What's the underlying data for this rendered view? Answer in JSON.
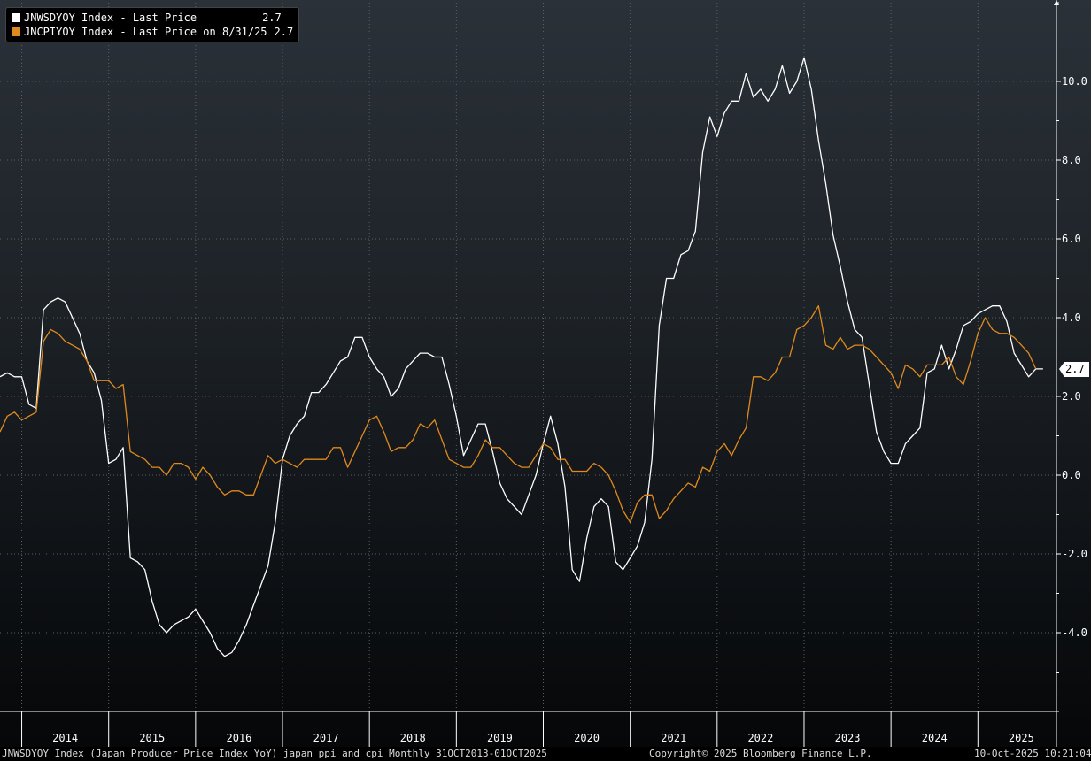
{
  "legend": {
    "items": [
      {
        "label": "JNWSDYOY Index - Last Price",
        "value": "2.7",
        "color": "#ffffff"
      },
      {
        "label": "JNCPIYOY Index - Last Price on 8/31/25",
        "value": "2.7",
        "color": "#e08a1e"
      }
    ]
  },
  "last_value_badge": "2.7",
  "footer": {
    "left": "JNWSDYOY Index (Japan Producer Price Index YoY) japan ppi and cpi Monthly 31OCT2013-01OCT2025",
    "center": "Copyright© 2025 Bloomberg Finance L.P.",
    "right": "10-Oct-2025 10:21:04"
  },
  "chart_data": {
    "type": "line",
    "x_start": "2013-10",
    "x_end": "2025-10",
    "ylim": [
      -6,
      12
    ],
    "yticks": [
      "10.0",
      "8.0",
      "6.0",
      "4.0",
      "2.0",
      "0.0",
      "-2.0",
      "-4.0"
    ],
    "xlabels": [
      "2014",
      "2015",
      "2016",
      "2017",
      "2018",
      "2019",
      "2020",
      "2021",
      "2022",
      "2023",
      "2024",
      "2025"
    ],
    "grid": true,
    "legend_position": "top-left",
    "series": [
      {
        "name": "JNWSDYOY Index - Last Price",
        "color": "#ffffff",
        "values": [
          2.5,
          2.6,
          2.5,
          2.5,
          1.8,
          1.7,
          4.2,
          4.4,
          4.5,
          4.4,
          4.0,
          3.6,
          2.9,
          2.6,
          1.9,
          0.3,
          0.4,
          0.7,
          -2.1,
          -2.2,
          -2.4,
          -3.2,
          -3.8,
          -4.0,
          -3.8,
          -3.7,
          -3.6,
          -3.4,
          -3.7,
          -4.0,
          -4.4,
          -4.6,
          -4.5,
          -4.2,
          -3.8,
          -3.3,
          -2.8,
          -2.3,
          -1.2,
          0.4,
          1.0,
          1.3,
          1.5,
          2.1,
          2.1,
          2.3,
          2.6,
          2.9,
          3.0,
          3.5,
          3.5,
          3.0,
          2.7,
          2.5,
          2.0,
          2.2,
          2.7,
          2.9,
          3.1,
          3.1,
          3.0,
          3.0,
          2.3,
          1.5,
          0.5,
          0.9,
          1.3,
          1.3,
          0.6,
          -0.2,
          -0.6,
          -0.8,
          -1.0,
          -0.5,
          0.0,
          0.8,
          1.5,
          0.8,
          -0.3,
          -2.4,
          -2.7,
          -1.6,
          -0.8,
          -0.6,
          -0.8,
          -2.2,
          -2.4,
          -2.1,
          -1.8,
          -1.2,
          0.4,
          3.8,
          5.0,
          5.0,
          5.6,
          5.7,
          6.2,
          8.2,
          9.1,
          8.6,
          9.2,
          9.5,
          9.5,
          10.2,
          9.6,
          9.8,
          9.5,
          9.8,
          10.4,
          9.7,
          10.0,
          10.6,
          9.8,
          8.5,
          7.4,
          6.1,
          5.3,
          4.4,
          3.7,
          3.5,
          2.3,
          1.1,
          0.6,
          0.3,
          0.3,
          0.8,
          1.0,
          1.2,
          2.6,
          2.7,
          3.3,
          2.7,
          3.2,
          3.8,
          3.9,
          4.1,
          4.2,
          4.3,
          4.3,
          3.9,
          3.1,
          2.8,
          2.5,
          2.7,
          2.7
        ]
      },
      {
        "name": "JNCPIYOY Index - Last Price on 8/31/25",
        "color": "#e08a1e",
        "values": [
          1.1,
          1.5,
          1.6,
          1.4,
          1.5,
          1.6,
          3.4,
          3.7,
          3.6,
          3.4,
          3.3,
          3.2,
          2.9,
          2.4,
          2.4,
          2.4,
          2.2,
          2.3,
          0.6,
          0.5,
          0.4,
          0.2,
          0.2,
          0.0,
          0.3,
          0.3,
          0.2,
          -0.1,
          0.2,
          0.0,
          -0.3,
          -0.5,
          -0.4,
          -0.4,
          -0.5,
          -0.5,
          0.0,
          0.5,
          0.3,
          0.4,
          0.3,
          0.2,
          0.4,
          0.4,
          0.4,
          0.4,
          0.7,
          0.7,
          0.2,
          0.6,
          1.0,
          1.4,
          1.5,
          1.1,
          0.6,
          0.7,
          0.7,
          0.9,
          1.3,
          1.2,
          1.4,
          0.9,
          0.4,
          0.3,
          0.2,
          0.2,
          0.5,
          0.9,
          0.7,
          0.7,
          0.5,
          0.3,
          0.2,
          0.2,
          0.5,
          0.8,
          0.7,
          0.4,
          0.4,
          0.1,
          0.1,
          0.1,
          0.3,
          0.2,
          0.0,
          -0.4,
          -0.9,
          -1.2,
          -0.7,
          -0.5,
          -0.5,
          -1.1,
          -0.9,
          -0.6,
          -0.4,
          -0.2,
          -0.3,
          0.2,
          0.1,
          0.6,
          0.8,
          0.5,
          0.9,
          1.2,
          2.5,
          2.5,
          2.4,
          2.6,
          3.0,
          3.0,
          3.7,
          3.8,
          4.0,
          4.3,
          3.3,
          3.2,
          3.5,
          3.2,
          3.3,
          3.3,
          3.2,
          3.0,
          2.8,
          2.6,
          2.2,
          2.8,
          2.7,
          2.5,
          2.8,
          2.8,
          2.8,
          3.0,
          2.5,
          2.3,
          2.9,
          3.6,
          4.0,
          3.7,
          3.6,
          3.6,
          3.5,
          3.3,
          3.1,
          2.7
        ]
      }
    ]
  }
}
